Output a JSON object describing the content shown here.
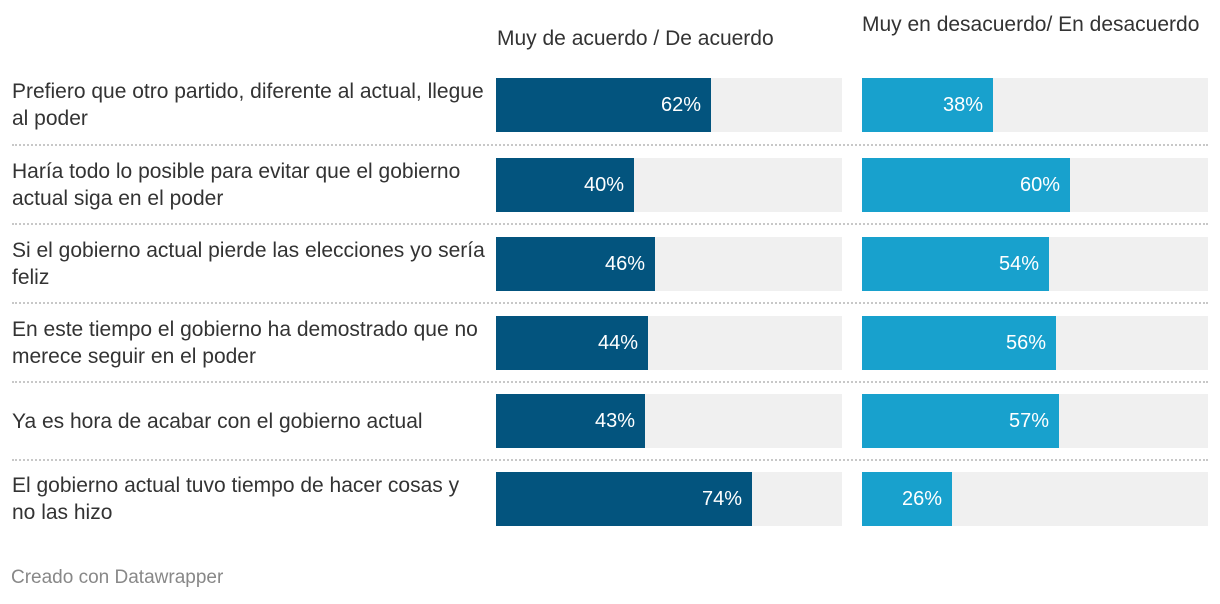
{
  "chart_data": {
    "type": "bar",
    "orientation": "horizontal",
    "layout": "small-multiples-columns",
    "value_max": 100,
    "unit": "%",
    "categories": [
      "Prefiero que otro partido, diferente al actual, llegue al poder",
      "Haría todo lo posible para evitar que el gobierno actual siga en el poder",
      "Si el gobierno actual pierde las elecciones yo sería feliz",
      "En este tiempo el gobierno ha demostrado que no merece seguir en el poder",
      "Ya es hora de acabar con el gobierno actual",
      "El gobierno actual tuvo tiempo de hacer cosas y no las hizo"
    ],
    "series": [
      {
        "name": "Muy de acuerdo / De acuerdo",
        "color": "#03547e",
        "values": [
          62,
          40,
          46,
          44,
          43,
          74
        ],
        "labels": [
          "62%",
          "40%",
          "46%",
          "44%",
          "43%",
          "74%"
        ]
      },
      {
        "name": "Muy en desacuerdo/ En desacuerdo",
        "color": "#18a1cd",
        "values": [
          38,
          60,
          54,
          56,
          57,
          26
        ],
        "labels": [
          "38%",
          "60%",
          "54%",
          "56%",
          "57%",
          "26%"
        ]
      }
    ],
    "track_color": "#f0f0f0"
  },
  "footer": "Creado con Datawrapper"
}
